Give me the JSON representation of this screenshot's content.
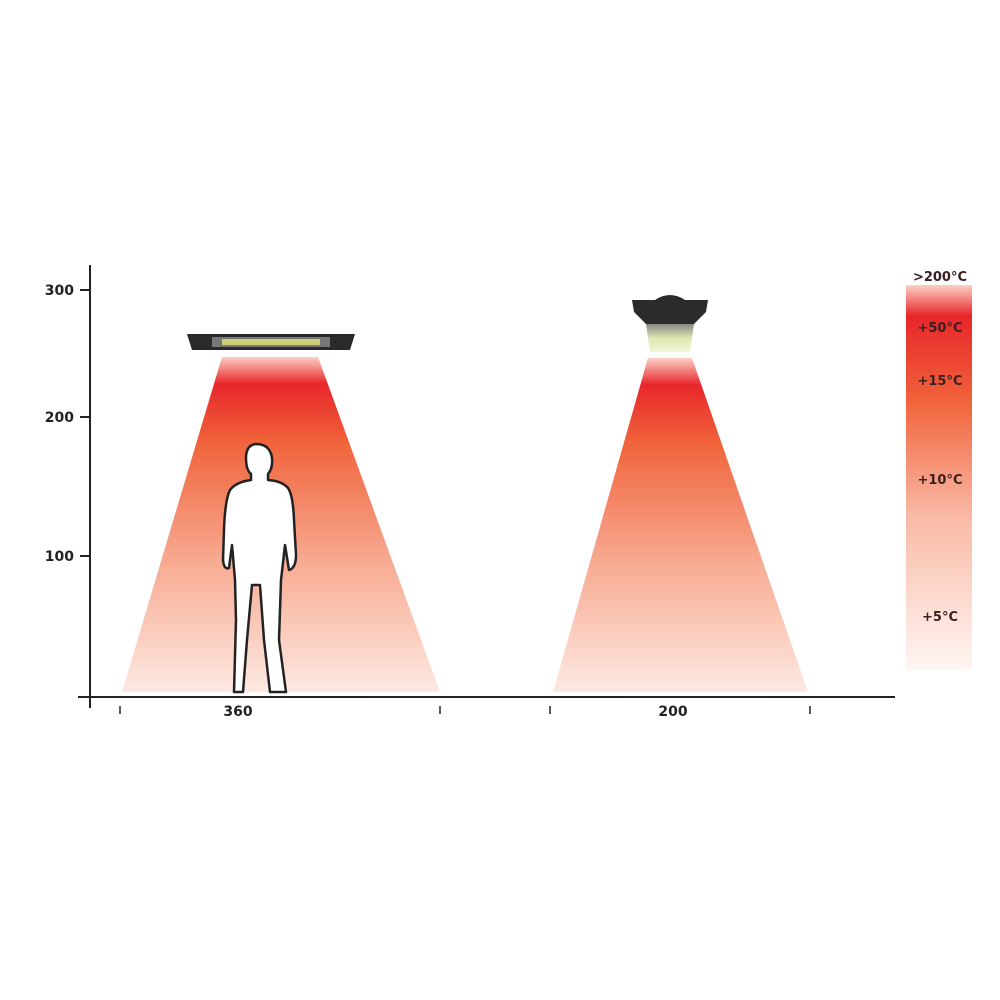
{
  "y_axis": {
    "ticks": [
      "300",
      "200",
      "100"
    ]
  },
  "x_axis": {
    "labels": [
      "360",
      "200"
    ]
  },
  "heaters": [
    {
      "name": "linear-heater",
      "width_label": "360"
    },
    {
      "name": "round-heater",
      "width_label": "200"
    }
  ],
  "legend": {
    "labels": [
      ">200°C",
      "+50°C",
      "+15°C",
      "+10°C",
      "+5°C"
    ]
  },
  "colors": {
    "hot": "#e8262b",
    "warm": "#f0623a",
    "cool": "#fde4dc",
    "axis": "#222222"
  }
}
